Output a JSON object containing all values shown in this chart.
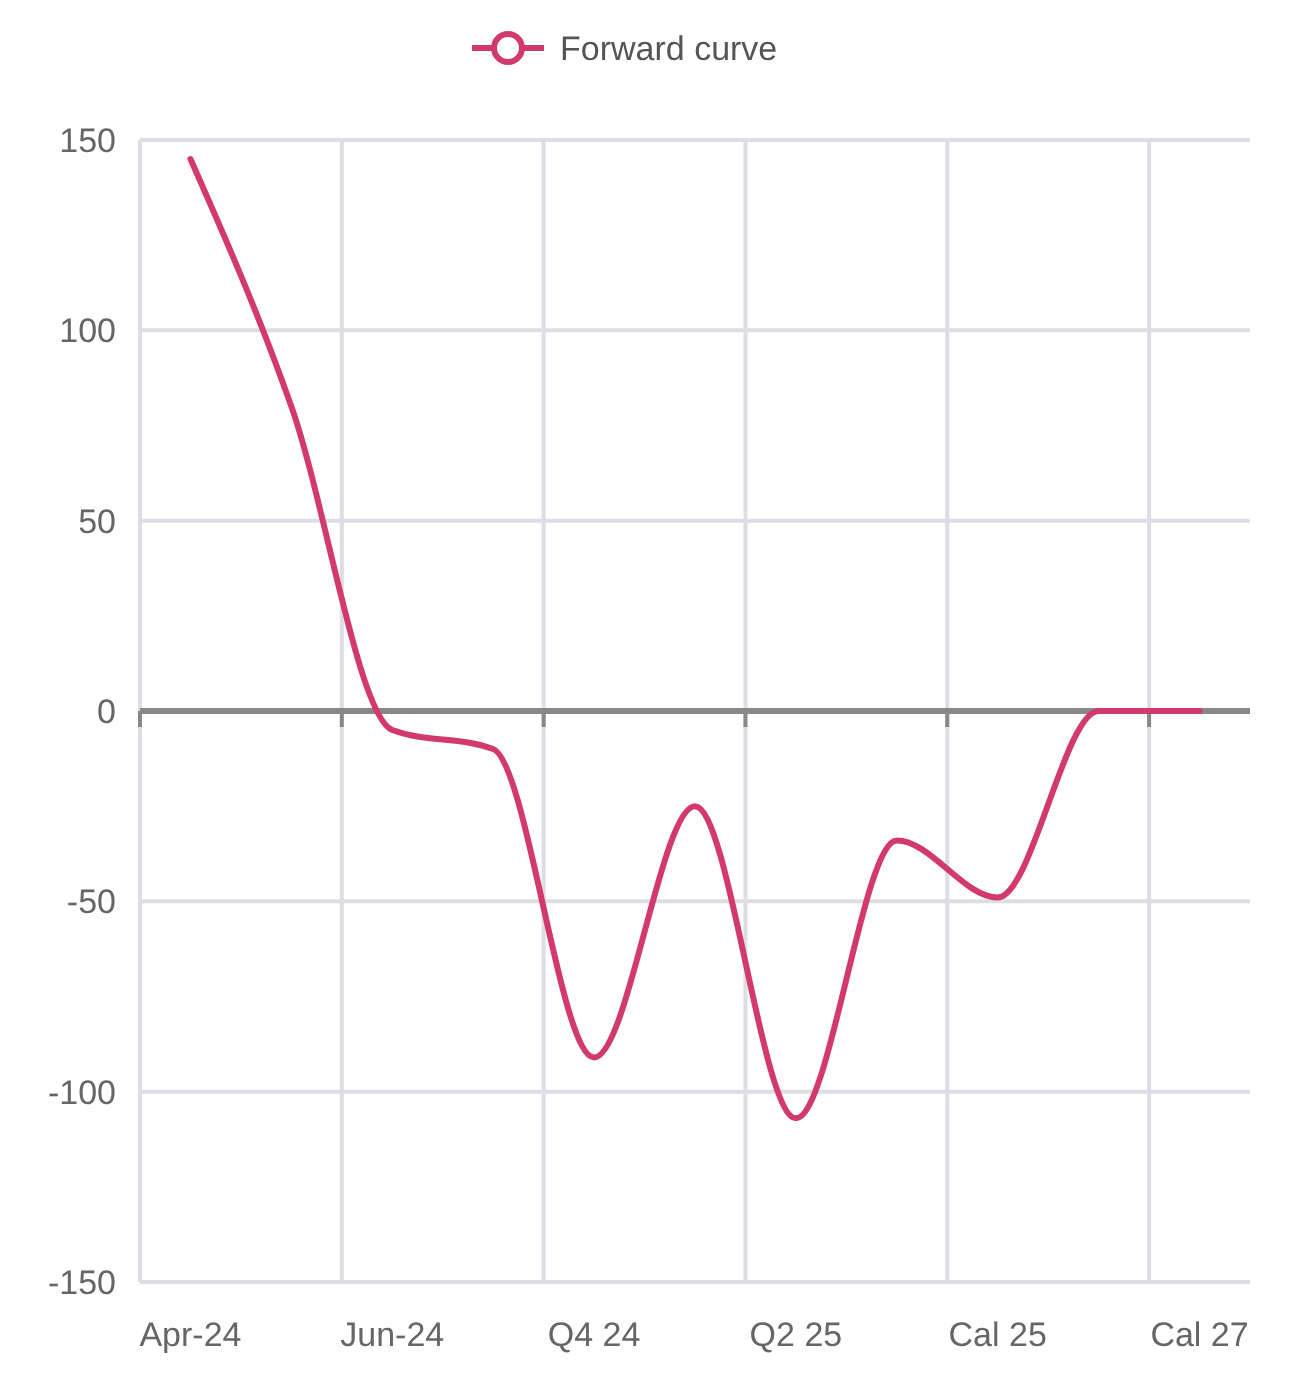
{
  "chart_data": {
    "type": "line",
    "categories": [
      "Apr-24",
      null,
      "Jun-24",
      null,
      "Q4 24",
      null,
      "Q2 25",
      null,
      "Cal 25",
      null,
      "Cal 27"
    ],
    "series": [
      {
        "name": "Forward curve",
        "color": "#d23a6b",
        "values": [
          145,
          80,
          -5,
          -10,
          -91,
          -25,
          -107,
          -34,
          -49,
          0,
          0
        ]
      }
    ],
    "ylim": [
      -150,
      150
    ],
    "yticks": [
      -150,
      -100,
      -50,
      0,
      50,
      100,
      150
    ],
    "grid": true,
    "legend": "top",
    "marker": "none",
    "line_style": "solid"
  }
}
